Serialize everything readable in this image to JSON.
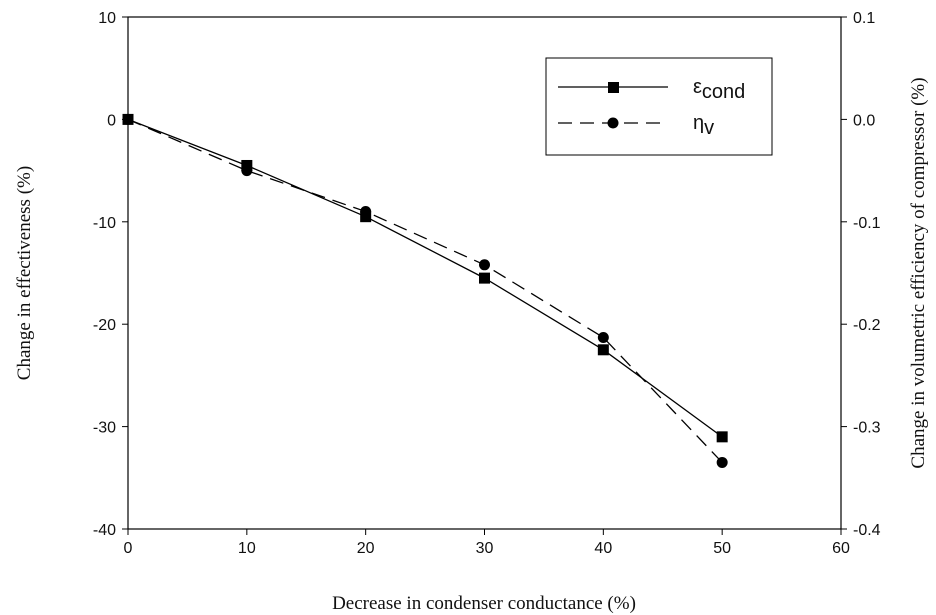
{
  "chart_data": {
    "type": "line",
    "xlabel": "Decrease in  condenser conductance (%)",
    "ylabel": "Change in effectiveness (%)",
    "y2label": "Change in volumetric efficiency of compressor (%)",
    "xlim": [
      0,
      60
    ],
    "ylim": [
      -40,
      10
    ],
    "y2lim": [
      -0.4,
      0.1
    ],
    "x_ticks": [
      "0",
      "10",
      "20",
      "30",
      "40",
      "50",
      "60"
    ],
    "y_ticks": [
      "10",
      "0",
      "-10",
      "-20",
      "-30",
      "-40"
    ],
    "y2_ticks": [
      "0.1",
      "0.0",
      "-0.1",
      "-0.2",
      "-0.3",
      "-0.4"
    ],
    "grid": false,
    "legend_position": "top-right",
    "series": [
      {
        "name": "εcond",
        "name_main": "ε",
        "name_sub": "cond",
        "axis": "left",
        "marker": "square",
        "line": "solid",
        "x": [
          0,
          10,
          20,
          30,
          40,
          50
        ],
        "values": [
          0,
          -4.5,
          -9.5,
          -15.5,
          -22.5,
          -31
        ]
      },
      {
        "name": "ηv",
        "name_main": "η",
        "name_sub": "v",
        "axis": "right",
        "marker": "circle",
        "line": "dashed",
        "x": [
          0,
          10,
          20,
          30,
          40,
          50
        ],
        "values": [
          0,
          -0.05,
          -0.09,
          -0.142,
          -0.213,
          -0.335
        ]
      }
    ]
  }
}
